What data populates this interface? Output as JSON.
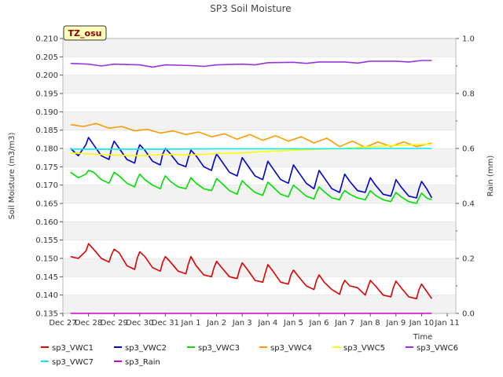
{
  "chart_data": {
    "type": "line",
    "title": "SP3 Soil Moisture",
    "xlabel": "Time",
    "ylabel": "Soil Moisture (m3/m3)",
    "y2label": "Rain (mm)",
    "badge": "TZ_osu",
    "ylim": [
      0.135,
      0.21
    ],
    "y2lim": [
      0.0,
      1.0
    ],
    "xlim": [
      0,
      15
    ],
    "x_ticks": [
      {
        "x": 0,
        "label": "Dec 27"
      },
      {
        "x": 1,
        "label": "Dec 28"
      },
      {
        "x": 2,
        "label": "Dec 29"
      },
      {
        "x": 3,
        "label": "Dec 30"
      },
      {
        "x": 4,
        "label": "Dec 31"
      },
      {
        "x": 5,
        "label": "Jan 1"
      },
      {
        "x": 6,
        "label": "Jan 2"
      },
      {
        "x": 7,
        "label": "Jan 3"
      },
      {
        "x": 8,
        "label": "Jan 4"
      },
      {
        "x": 9,
        "label": "Jan 5"
      },
      {
        "x": 10,
        "label": "Jan 6"
      },
      {
        "x": 11,
        "label": "Jan 7"
      },
      {
        "x": 12,
        "label": "Jan 8"
      },
      {
        "x": 13,
        "label": "Jan 9"
      },
      {
        "x": 14,
        "label": "Jan 10"
      },
      {
        "x": 15,
        "label": "Jan 11"
      }
    ],
    "y_ticks": [
      "0.135",
      "0.140",
      "0.145",
      "0.150",
      "0.155",
      "0.160",
      "0.165",
      "0.170",
      "0.175",
      "0.180",
      "0.185",
      "0.190",
      "0.195",
      "0.200",
      "0.205",
      "0.210"
    ],
    "y2_ticks": [
      "0.0",
      "0.2",
      "0.4",
      "0.6",
      "0.8",
      "1.0"
    ],
    "grid": "horizontal bands",
    "legend": "bottom",
    "series": [
      {
        "name": "sp3_VWC1",
        "color": "#dd0000",
        "axis": "left",
        "x": [
          0.3,
          0.6,
          0.9,
          1.0,
          1.2,
          1.5,
          1.8,
          1.9,
          2.0,
          2.2,
          2.5,
          2.8,
          2.9,
          3.0,
          3.2,
          3.5,
          3.8,
          3.9,
          4.0,
          4.2,
          4.5,
          4.8,
          4.9,
          5.0,
          5.2,
          5.5,
          5.8,
          5.9,
          6.0,
          6.2,
          6.5,
          6.8,
          6.9,
          7.0,
          7.2,
          7.5,
          7.8,
          7.9,
          8.0,
          8.2,
          8.5,
          8.8,
          8.9,
          9.0,
          9.2,
          9.5,
          9.8,
          9.9,
          10.0,
          10.2,
          10.5,
          10.8,
          10.9,
          11.0,
          11.2,
          11.5,
          11.8,
          11.9,
          12.0,
          12.2,
          12.5,
          12.8,
          12.9,
          13.0,
          13.2,
          13.5,
          13.8,
          13.9,
          14.0,
          14.2,
          14.4
        ],
        "y": [
          0.1505,
          0.15,
          0.152,
          0.154,
          0.1525,
          0.15,
          0.149,
          0.151,
          0.1525,
          0.1515,
          0.148,
          0.147,
          0.15,
          0.1518,
          0.1505,
          0.1475,
          0.1465,
          0.149,
          0.1505,
          0.149,
          0.1465,
          0.1458,
          0.1485,
          0.1505,
          0.148,
          0.1455,
          0.145,
          0.1475,
          0.1492,
          0.1475,
          0.145,
          0.1445,
          0.147,
          0.1488,
          0.147,
          0.144,
          0.1435,
          0.146,
          0.1483,
          0.1465,
          0.1435,
          0.143,
          0.1455,
          0.1468,
          0.145,
          0.1425,
          0.1415,
          0.144,
          0.1455,
          0.1435,
          0.1415,
          0.1402,
          0.1425,
          0.144,
          0.1425,
          0.142,
          0.14,
          0.142,
          0.144,
          0.1425,
          0.14,
          0.1395,
          0.142,
          0.1438,
          0.142,
          0.1395,
          0.139,
          0.1415,
          0.143,
          0.141,
          0.139
        ]
      },
      {
        "name": "sp3_VWC2",
        "color": "#0000cc",
        "axis": "left",
        "x": [
          0.3,
          0.6,
          0.9,
          1.0,
          1.2,
          1.5,
          1.8,
          1.9,
          2.0,
          2.2,
          2.5,
          2.8,
          2.9,
          3.0,
          3.2,
          3.5,
          3.8,
          3.9,
          4.0,
          4.2,
          4.5,
          4.8,
          4.9,
          5.0,
          5.2,
          5.5,
          5.8,
          5.9,
          6.0,
          6.2,
          6.5,
          6.8,
          6.9,
          7.0,
          7.2,
          7.5,
          7.8,
          7.9,
          8.0,
          8.2,
          8.5,
          8.8,
          8.9,
          9.0,
          9.2,
          9.5,
          9.8,
          9.9,
          10.0,
          10.2,
          10.5,
          10.8,
          10.9,
          11.0,
          11.2,
          11.5,
          11.8,
          11.9,
          12.0,
          12.2,
          12.5,
          12.8,
          12.9,
          13.0,
          13.2,
          13.5,
          13.8,
          13.9,
          14.0,
          14.2,
          14.4
        ],
        "y": [
          0.18,
          0.178,
          0.181,
          0.183,
          0.181,
          0.178,
          0.177,
          0.18,
          0.182,
          0.18,
          0.177,
          0.176,
          0.179,
          0.181,
          0.1795,
          0.1765,
          0.1755,
          0.1785,
          0.18,
          0.1785,
          0.1758,
          0.175,
          0.1775,
          0.1795,
          0.178,
          0.175,
          0.174,
          0.1765,
          0.1785,
          0.1765,
          0.1735,
          0.1725,
          0.175,
          0.1775,
          0.1755,
          0.1725,
          0.1715,
          0.174,
          0.1765,
          0.1745,
          0.1715,
          0.1705,
          0.173,
          0.1755,
          0.1735,
          0.1705,
          0.169,
          0.1715,
          0.174,
          0.172,
          0.169,
          0.168,
          0.1705,
          0.173,
          0.171,
          0.1685,
          0.168,
          0.17,
          0.172,
          0.17,
          0.1675,
          0.167,
          0.169,
          0.1715,
          0.1695,
          0.167,
          0.1665,
          0.169,
          0.171,
          0.169,
          0.1665
        ]
      },
      {
        "name": "sp3_VWC3",
        "color": "#00dd00",
        "axis": "left",
        "x": [
          0.3,
          0.6,
          0.9,
          1.0,
          1.2,
          1.5,
          1.8,
          1.9,
          2.0,
          2.2,
          2.5,
          2.8,
          2.9,
          3.0,
          3.2,
          3.5,
          3.8,
          3.9,
          4.0,
          4.2,
          4.5,
          4.8,
          4.9,
          5.0,
          5.2,
          5.5,
          5.8,
          5.9,
          6.0,
          6.2,
          6.5,
          6.8,
          6.9,
          7.0,
          7.2,
          7.5,
          7.8,
          7.9,
          8.0,
          8.2,
          8.5,
          8.8,
          8.9,
          9.0,
          9.2,
          9.5,
          9.8,
          9.9,
          10.0,
          10.2,
          10.5,
          10.8,
          10.9,
          11.0,
          11.2,
          11.5,
          11.8,
          11.9,
          12.0,
          12.2,
          12.5,
          12.8,
          12.9,
          13.0,
          13.2,
          13.5,
          13.8,
          13.9,
          14.0,
          14.2,
          14.4
        ],
        "y": [
          0.1735,
          0.172,
          0.173,
          0.174,
          0.1735,
          0.1715,
          0.1705,
          0.172,
          0.1735,
          0.1725,
          0.1705,
          0.1695,
          0.1715,
          0.173,
          0.1715,
          0.17,
          0.169,
          0.171,
          0.1725,
          0.171,
          0.1695,
          0.169,
          0.1705,
          0.172,
          0.1705,
          0.169,
          0.1685,
          0.17,
          0.1718,
          0.1705,
          0.1685,
          0.1675,
          0.1695,
          0.1712,
          0.1698,
          0.168,
          0.1672,
          0.169,
          0.1708,
          0.1695,
          0.1675,
          0.1668,
          0.1685,
          0.17,
          0.1688,
          0.167,
          0.1662,
          0.168,
          0.1695,
          0.1682,
          0.1665,
          0.166,
          0.1675,
          0.1685,
          0.1675,
          0.1665,
          0.166,
          0.1672,
          0.1685,
          0.1672,
          0.166,
          0.1655,
          0.1668,
          0.168,
          0.1668,
          0.1655,
          0.165,
          0.1665,
          0.1678,
          0.1665,
          0.166
        ]
      },
      {
        "name": "sp3_VWC4",
        "color": "#ff9900",
        "axis": "left",
        "x": [
          0.3,
          0.8,
          1.3,
          1.8,
          2.3,
          2.8,
          3.3,
          3.8,
          4.3,
          4.8,
          5.3,
          5.8,
          6.3,
          6.8,
          7.3,
          7.8,
          8.3,
          8.8,
          9.3,
          9.8,
          10.3,
          10.8,
          11.3,
          11.8,
          12.3,
          12.8,
          13.3,
          13.8,
          14.4
        ],
        "y": [
          0.1865,
          0.186,
          0.1868,
          0.1855,
          0.186,
          0.1848,
          0.1852,
          0.1842,
          0.1848,
          0.1838,
          0.1845,
          0.1832,
          0.184,
          0.1825,
          0.1838,
          0.1822,
          0.1835,
          0.182,
          0.1832,
          0.1815,
          0.1828,
          0.1805,
          0.182,
          0.1803,
          0.1818,
          0.1805,
          0.1818,
          0.1805,
          0.1815
        ]
      },
      {
        "name": "sp3_VWC5",
        "color": "#ffff00",
        "axis": "left",
        "x": [
          0.3,
          1.0,
          2.0,
          3.0,
          4.0,
          5.0,
          6.0,
          7.0,
          8.0,
          9.0,
          10.0,
          11.0,
          12.0,
          13.0,
          14.4
        ],
        "y": [
          0.1788,
          0.1785,
          0.1782,
          0.178,
          0.1784,
          0.1782,
          0.1786,
          0.1788,
          0.1792,
          0.1795,
          0.1798,
          0.18,
          0.1805,
          0.1808,
          0.1812
        ]
      },
      {
        "name": "sp3_VWC6",
        "color": "#9933dd",
        "axis": "left",
        "x": [
          0.3,
          1.0,
          1.5,
          2.0,
          3.0,
          3.5,
          4.0,
          5.0,
          5.5,
          6.0,
          7.0,
          7.5,
          8.0,
          9.0,
          9.5,
          10.0,
          11.0,
          11.5,
          12.0,
          13.0,
          13.5,
          14.0,
          14.4
        ],
        "y": [
          0.2032,
          0.203,
          0.2025,
          0.203,
          0.2028,
          0.2022,
          0.2028,
          0.2026,
          0.2024,
          0.2028,
          0.203,
          0.2028,
          0.2034,
          0.2035,
          0.2032,
          0.2036,
          0.2036,
          0.2033,
          0.2038,
          0.2038,
          0.2036,
          0.204,
          0.204
        ]
      },
      {
        "name": "sp3_VWC7",
        "color": "#00eeee",
        "axis": "left",
        "x": [
          0.3,
          2.0,
          4.0,
          6.0,
          8.0,
          10.0,
          12.0,
          14.4
        ],
        "y": [
          0.1798,
          0.1798,
          0.1798,
          0.1799,
          0.1799,
          0.1799,
          0.18,
          0.18
        ]
      },
      {
        "name": "sp3_Rain",
        "color": "#cc00cc",
        "axis": "right",
        "x": [
          0.3,
          14.4
        ],
        "y": [
          0.0,
          0.0
        ]
      }
    ]
  }
}
